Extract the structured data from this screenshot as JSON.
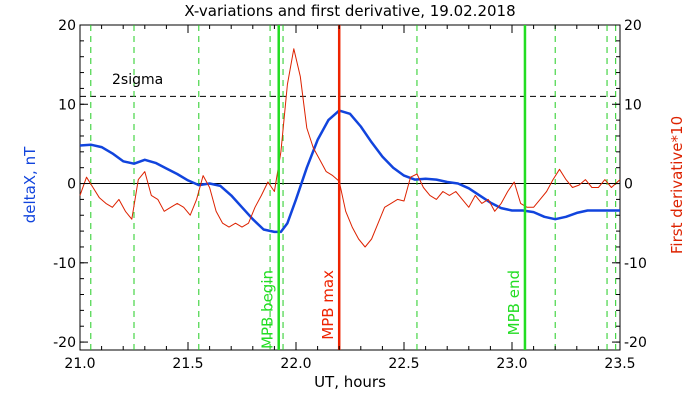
{
  "chart_data": {
    "type": "line",
    "title": "X-variations and first derivative, 19.02.2018",
    "xlabel": "UT, hours",
    "ylabel_left": "deltaX, nT",
    "ylabel_right": "First derivative*10",
    "xlim": [
      21.0,
      23.5
    ],
    "ylim": [
      -21,
      20
    ],
    "x_ticks": [
      "21.0",
      "21.5",
      "22.0",
      "22.5",
      "23.0",
      "23.5"
    ],
    "x_tick_values": [
      21.0,
      21.5,
      22.0,
      22.5,
      23.0,
      23.5
    ],
    "y_ticks": [
      "-20",
      "-10",
      "0",
      "10",
      "20"
    ],
    "y_tick_values": [
      -20,
      -10,
      0,
      10,
      20
    ],
    "sigma_line": {
      "label": "2sigma",
      "value": 11
    },
    "zero_line": 0,
    "markers": [
      {
        "label": "MPB begin",
        "x": 21.92,
        "color": "#22dd22"
      },
      {
        "label": "MPB max",
        "x": 22.2,
        "color": "#ee2200"
      },
      {
        "label": "MPB end",
        "x": 23.06,
        "color": "#22dd22"
      }
    ],
    "dashed_verticals": [
      21.05,
      21.25,
      21.55,
      21.88,
      21.94,
      22.56,
      23.2,
      23.44,
      23.48
    ],
    "colors": {
      "deltaX": "#1144dd",
      "derivative": "#dd2200",
      "marker_green": "#22dd22",
      "dashed_green": "#22cc22"
    },
    "series": [
      {
        "name": "deltaX, nT",
        "axis": "left",
        "color": "#1144dd",
        "x": [
          21.0,
          21.05,
          21.1,
          21.15,
          21.2,
          21.25,
          21.3,
          21.35,
          21.4,
          21.45,
          21.5,
          21.55,
          21.6,
          21.65,
          21.7,
          21.75,
          21.8,
          21.85,
          21.9,
          21.93,
          21.96,
          22.0,
          22.05,
          22.1,
          22.15,
          22.2,
          22.25,
          22.3,
          22.35,
          22.4,
          22.45,
          22.5,
          22.55,
          22.6,
          22.65,
          22.7,
          22.75,
          22.8,
          22.85,
          22.9,
          22.95,
          23.0,
          23.05,
          23.1,
          23.15,
          23.2,
          23.25,
          23.3,
          23.35,
          23.4,
          23.45,
          23.5
        ],
        "y": [
          4.8,
          4.9,
          4.6,
          3.8,
          2.8,
          2.5,
          3.0,
          2.6,
          1.9,
          1.2,
          0.4,
          -0.2,
          0.0,
          -0.3,
          -1.5,
          -3.0,
          -4.5,
          -5.8,
          -6.1,
          -6.1,
          -5.0,
          -2.0,
          2.0,
          5.5,
          8.0,
          9.2,
          8.8,
          7.2,
          5.2,
          3.4,
          2.0,
          1.0,
          0.5,
          0.6,
          0.5,
          0.2,
          0.0,
          -0.6,
          -1.5,
          -2.4,
          -3.1,
          -3.4,
          -3.4,
          -3.6,
          -4.2,
          -4.5,
          -4.2,
          -3.7,
          -3.4,
          -3.4,
          -3.4,
          -3.4
        ]
      },
      {
        "name": "First derivative*10",
        "axis": "right",
        "color": "#dd2200",
        "x": [
          21.0,
          21.03,
          21.06,
          21.09,
          21.12,
          21.15,
          21.18,
          21.21,
          21.24,
          21.27,
          21.3,
          21.33,
          21.36,
          21.39,
          21.42,
          21.45,
          21.48,
          21.51,
          21.54,
          21.57,
          21.6,
          21.63,
          21.66,
          21.69,
          21.72,
          21.75,
          21.78,
          21.81,
          21.84,
          21.87,
          21.9,
          21.93,
          21.96,
          21.99,
          22.02,
          22.05,
          22.08,
          22.11,
          22.14,
          22.17,
          22.2,
          22.23,
          22.26,
          22.29,
          22.32,
          22.35,
          22.38,
          22.41,
          22.44,
          22.47,
          22.5,
          22.53,
          22.56,
          22.59,
          22.62,
          22.65,
          22.68,
          22.71,
          22.74,
          22.77,
          22.8,
          22.83,
          22.86,
          22.89,
          22.92,
          22.95,
          22.98,
          23.01,
          23.04,
          23.07,
          23.1,
          23.13,
          23.16,
          23.19,
          23.22,
          23.25,
          23.28,
          23.31,
          23.34,
          23.37,
          23.4,
          23.43,
          23.46,
          23.5
        ],
        "y": [
          -1.5,
          0.8,
          -0.5,
          -1.8,
          -2.5,
          -3.0,
          -2.0,
          -3.5,
          -4.5,
          0.5,
          1.5,
          -1.5,
          -2.0,
          -3.5,
          -3.0,
          -2.5,
          -3.0,
          -4.0,
          -2.0,
          1.0,
          -0.5,
          -3.5,
          -5.0,
          -5.5,
          -5.0,
          -5.5,
          -5.0,
          -3.0,
          -1.5,
          0.2,
          -1.0,
          4.0,
          12.5,
          17.0,
          13.5,
          7.0,
          4.5,
          3.0,
          1.5,
          1.0,
          0.3,
          -3.5,
          -5.5,
          -7.0,
          -8.0,
          -7.0,
          -5.0,
          -3.0,
          -2.5,
          -2.0,
          -2.2,
          0.8,
          1.2,
          -0.5,
          -1.5,
          -2.0,
          -1.0,
          -1.5,
          -1.0,
          -2.0,
          -3.0,
          -1.5,
          -2.5,
          -2.0,
          -3.5,
          -2.5,
          -1.0,
          0.2,
          -2.5,
          -3.0,
          -3.0,
          -2.0,
          -1.0,
          0.5,
          1.8,
          0.5,
          -0.5,
          -0.2,
          0.5,
          -0.5,
          -0.5,
          0.5,
          -0.5,
          0.5
        ]
      }
    ]
  }
}
